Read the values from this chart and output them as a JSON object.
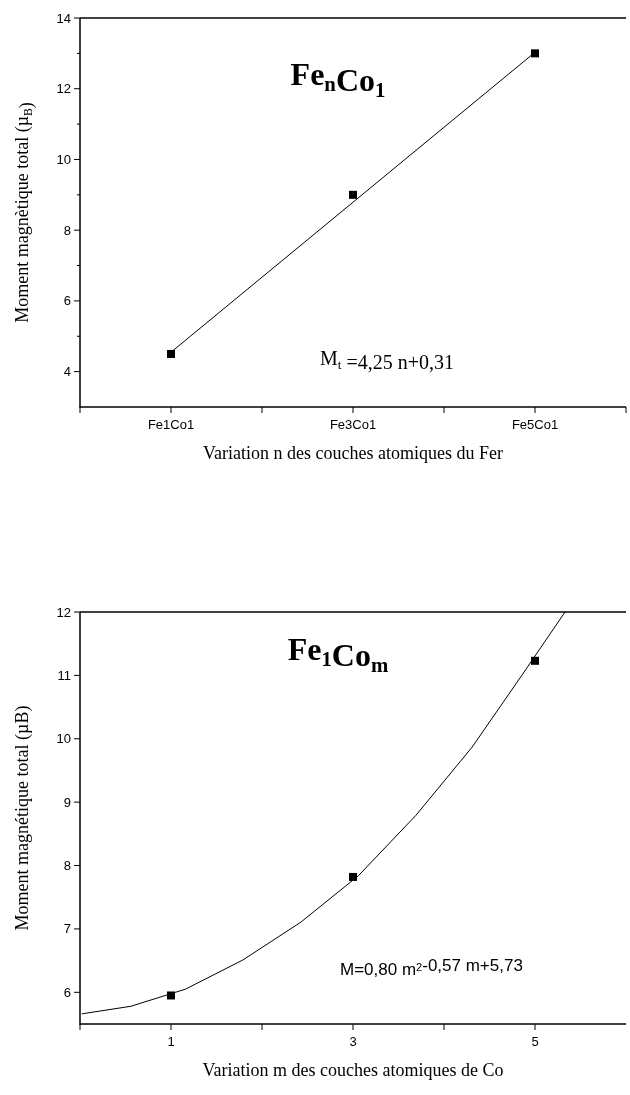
{
  "chart_data": [
    {
      "type": "scatter",
      "title": "Fe$_{n}$Co$_{1}$",
      "xlabel": "Variation n des couches atomiques du Fer",
      "ylabel": "Moment magnètique total (µ$_{B}$)",
      "categories": [
        null,
        "Fe1Co1",
        null,
        "Fe3Co1",
        null,
        "Fe5Co1",
        null
      ],
      "ylim": [
        3,
        14
      ],
      "yticks": [
        4,
        {
          "value": 5,
          "label": null
        },
        6,
        {
          "value": 7,
          "label": null
        },
        8,
        {
          "value": 9,
          "label": null
        },
        10,
        {
          "value": 11,
          "label": null
        },
        12,
        {
          "value": 13,
          "label": null
        },
        14
      ],
      "series": [
        {
          "color": "#000000",
          "marker": "square",
          "values": [
            null,
            4.5,
            null,
            9,
            null,
            13,
            null
          ]
        },
        {
          "type": "line",
          "color": "#000000",
          "marker": "none",
          "line_style": "solid",
          "values": [
            null,
            4.55,
            6.67,
            8.79,
            10.91,
            13.03,
            null
          ]
        }
      ],
      "annotations": [
        "M$_{t}$ =4,25 n+0,31"
      ]
    },
    {
      "type": "scatter",
      "title": "Fe$_{1}$Co$_{m}$",
      "xlabel": "Variation m des couches atomiques de Co",
      "ylabel": "Moment magnétique total (µB)",
      "xlim": [
        0,
        6
      ],
      "xticks": [
        {
          "value": 0,
          "label": null
        },
        1,
        {
          "value": 2,
          "label": null
        },
        3,
        {
          "value": 4,
          "label": null
        },
        5
      ],
      "ylim": [
        5.5,
        12
      ],
      "yticks": [
        6,
        7,
        8,
        9,
        10,
        11,
        12
      ],
      "series": [
        {
          "color": "#000000",
          "marker": "square",
          "x": [
            1,
            3,
            5
          ],
          "values": [
            5.95,
            7.82,
            11.23
          ]
        },
        {
          "type": "line",
          "color": "#000000",
          "marker": "none",
          "line_style": "solid",
          "x": [
            0.02,
            0.56,
            1.16,
            1.79,
            2.43,
            3.06,
            3.69,
            4.31,
            4.85,
            5.33
          ],
          "values": [
            5.66,
            5.78,
            6.05,
            6.51,
            7.11,
            7.84,
            8.79,
            9.87,
            10.99,
            12.0
          ]
        }
      ],
      "annotations": [
        "M=0,80 m$^{2}$-0,57 m+5,73"
      ]
    }
  ]
}
